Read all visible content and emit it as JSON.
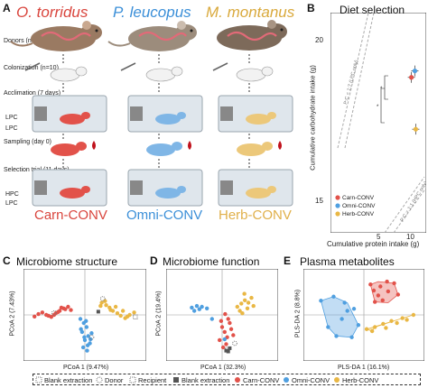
{
  "panels": {
    "a": "A",
    "b": "B",
    "c": "C",
    "d": "D",
    "e": "E"
  },
  "species": [
    {
      "name": "O. torridus",
      "color": "#d9453d"
    },
    {
      "name": "P. leucopus",
      "color": "#3b8fd8"
    },
    {
      "name": "M. montanus",
      "color": "#d9a93c"
    }
  ],
  "steps": {
    "donors": "Donors (n=10)",
    "colonization": "Colonization (n=10)",
    "acclimation": "Acclimation (7 days)",
    "sampling": "Sampling (day 0)",
    "selection": "Selection trial (11 days)",
    "lpc": "LPC",
    "hpc": "HPC"
  },
  "groups": [
    {
      "name": "Carn-CONV",
      "color": "#d9453d"
    },
    {
      "name": "Omni-CONV",
      "color": "#3b8fd8"
    },
    {
      "name": "Herb-CONV",
      "color": "#e0b04a"
    }
  ],
  "panel_titles": {
    "b": "Diet selection",
    "c": "Microbiome structure",
    "d": "Microbiome function",
    "e": "Plasma metabolites"
  },
  "colors": {
    "carn": "#e2524a",
    "omni": "#4f9fe0",
    "herb": "#e9b744",
    "grey": "#555555"
  },
  "chart_data": [
    {
      "panel": "B",
      "type": "scatter",
      "title": "Diet selection",
      "xlabel": "Cumulative protein intake (g)",
      "ylabel": "Cumulative carbohydrate intake (g)",
      "xlim": [
        0,
        11
      ],
      "ylim": [
        14.2,
        21
      ],
      "xticks": [
        5,
        10
      ],
      "yticks": [
        15,
        20
      ],
      "reference_lines": [
        "P:C = 1:7 (LPC only)",
        "P:C = 1:1 (HPC only)"
      ],
      "series": [
        {
          "name": "Carn-CONV",
          "color": "#e2524a",
          "x": [
            9.3
          ],
          "y": [
            19.0
          ]
        },
        {
          "name": "Omni-CONV",
          "color": "#4f9fe0",
          "x": [
            9.7
          ],
          "y": [
            19.2
          ]
        },
        {
          "name": "Herb-CONV",
          "color": "#e9b744",
          "x": [
            9.8
          ],
          "y": [
            17.4
          ]
        }
      ],
      "significance": [
        "*",
        "*"
      ],
      "legend": "bottom-left"
    },
    {
      "panel": "C",
      "type": "scatter",
      "title": "Microbiome structure",
      "xlabel": "PCoA 1 (9.47%)",
      "ylabel": "PCoA 2 (7.43%)",
      "xlim": [
        -1,
        1
      ],
      "ylim": [
        -1,
        1
      ],
      "series": [
        {
          "name": "Carn-CONV",
          "marker": "circle",
          "color": "#e2524a",
          "x": [
            -0.9,
            -0.83,
            -0.76,
            -0.69,
            -0.6,
            -0.52,
            -0.45,
            -0.38,
            -0.3,
            -0.25,
            -0.65,
            -0.48,
            -0.35,
            -0.55,
            -0.42
          ],
          "y": [
            -0.04,
            0.02,
            0.06,
            0.0,
            -0.05,
            0.04,
            0.1,
            0.16,
            0.2,
            0.12,
            -0.02,
            0.07,
            0.14,
            0.0,
            0.18
          ]
        },
        {
          "name": "Omni-CONV",
          "marker": "circle",
          "color": "#4f9fe0",
          "x": [
            -0.08,
            -0.02,
            0.03,
            -0.05,
            0.06,
            0.0,
            0.09,
            -0.03,
            0.04,
            0.1,
            -0.07,
            0.02,
            0.12,
            0.05,
            -0.01
          ],
          "y": [
            -0.1,
            -0.2,
            -0.3,
            -0.42,
            -0.52,
            -0.62,
            -0.7,
            -0.8,
            -0.88,
            -0.6,
            -0.35,
            -0.15,
            -0.45,
            -0.75,
            -0.55
          ]
        },
        {
          "name": "Herb-CONV",
          "marker": "circle",
          "color": "#e9b744",
          "x": [
            0.3,
            0.38,
            0.44,
            0.5,
            0.58,
            0.64,
            0.72,
            0.8,
            0.88,
            0.36,
            0.46,
            0.55,
            0.68,
            0.76,
            0.28
          ],
          "y": [
            0.3,
            0.24,
            0.18,
            0.1,
            0.04,
            -0.02,
            -0.08,
            0.0,
            0.06,
            0.34,
            0.12,
            0.2,
            0.1,
            -0.04,
            0.22
          ]
        },
        {
          "name": "Donor",
          "marker": "hollow-circle",
          "color": "#777777",
          "x": [
            -0.55,
            0.12,
            0.32
          ],
          "y": [
            0.05,
            -0.55,
            0.4
          ]
        },
        {
          "name": "Blank extraction",
          "marker": "square-dotted",
          "color": "#777777",
          "x": [
            0.9
          ],
          "y": [
            -0.05
          ]
        },
        {
          "name": "Recipient",
          "marker": "square",
          "color": "#555555",
          "x": [
            0.24
          ],
          "y": [
            0.08
          ]
        }
      ]
    },
    {
      "panel": "D",
      "type": "scatter",
      "title": "Microbiome function",
      "xlabel": "PCoA 1 (32.3%)",
      "ylabel": "PCoA 2 (19.4%)",
      "xlim": [
        -1,
        1
      ],
      "ylim": [
        -1,
        1
      ],
      "series": [
        {
          "name": "Carn-CONV",
          "marker": "circle",
          "color": "#e2524a",
          "x": [
            0.0,
            0.05,
            0.1,
            0.15,
            -0.05,
            0.08,
            0.12,
            0.02,
            0.18,
            0.06,
            0.22,
            -0.02
          ],
          "y": [
            -0.3,
            -0.42,
            -0.55,
            -0.2,
            -0.62,
            -0.72,
            -0.1,
            -0.8,
            -0.35,
            0.02,
            -0.5,
            -0.15
          ]
        },
        {
          "name": "Omni-CONV",
          "marker": "circle",
          "color": "#4f9fe0",
          "x": [
            -0.6,
            -0.55,
            -0.5,
            -0.45,
            -0.4,
            -0.3,
            -0.2,
            0.05
          ],
          "y": [
            0.18,
            0.1,
            0.22,
            0.14,
            0.2,
            0.16,
            -0.1,
            -0.6
          ]
        },
        {
          "name": "Herb-CONV",
          "marker": "circle",
          "color": "#e9b744",
          "x": [
            0.3,
            0.38,
            0.45,
            0.52,
            0.58,
            0.35,
            0.44,
            0.5,
            0.62,
            0.4
          ],
          "y": [
            0.2,
            0.28,
            0.36,
            0.3,
            0.42,
            0.1,
            0.52,
            0.16,
            0.22,
            0.04
          ]
        },
        {
          "name": "Donor",
          "marker": "hollow-circle",
          "color": "#777777",
          "x": [
            0.1,
            0.25
          ],
          "y": [
            -0.85,
            -0.7
          ]
        },
        {
          "name": "Recipient",
          "marker": "square",
          "color": "#555555",
          "x": [
            0.08,
            0.12,
            0.15
          ],
          "y": [
            -0.88,
            -0.9,
            -0.82
          ]
        }
      ]
    },
    {
      "panel": "E",
      "type": "scatter",
      "title": "Plasma metabolites",
      "xlabel": "PLS-DA 1 (16.1%)",
      "ylabel": "PLS-DA 2 (8.8%)",
      "xlim": [
        -1,
        1
      ],
      "ylim": [
        -1,
        1
      ],
      "series": [
        {
          "name": "Carn-CONV",
          "color": "#e2524a",
          "x": [
            0.12,
            0.18,
            0.26,
            0.34,
            0.42,
            0.55,
            0.62,
            0.2,
            0.44,
            0.3
          ],
          "y": [
            0.75,
            0.6,
            0.48,
            0.36,
            0.82,
            0.78,
            0.5,
            0.32,
            0.58,
            0.7
          ],
          "hull": [
            [
              0.12,
              0.75
            ],
            [
              0.26,
              0.82
            ],
            [
              0.55,
              0.78
            ],
            [
              0.62,
              0.5
            ],
            [
              0.44,
              0.3
            ],
            [
              0.2,
              0.32
            ]
          ]
        },
        {
          "name": "Omni-CONV",
          "color": "#4f9fe0",
          "x": [
            -0.78,
            -0.55,
            -0.3,
            -0.1,
            -0.22,
            -0.5,
            -0.65,
            -0.4,
            -0.18,
            -0.35
          ],
          "y": [
            0.35,
            0.45,
            0.1,
            -0.25,
            -0.55,
            -0.52,
            -0.3,
            -0.1,
            0.15,
            0.3
          ],
          "hull": [
            [
              -0.78,
              0.35
            ],
            [
              -0.55,
              0.45
            ],
            [
              -0.3,
              0.3
            ],
            [
              -0.1,
              -0.25
            ],
            [
              -0.22,
              -0.55
            ],
            [
              -0.5,
              -0.52
            ],
            [
              -0.65,
              -0.3
            ]
          ]
        },
        {
          "name": "Herb-CONV",
          "color": "#e9b744",
          "x": [
            0.05,
            0.2,
            0.35,
            0.5,
            0.7,
            0.9,
            0.15,
            0.4,
            0.6,
            0.78
          ],
          "y": [
            -0.35,
            -0.3,
            -0.22,
            -0.15,
            -0.08,
            0.0,
            -0.4,
            -0.32,
            -0.2,
            -0.12
          ],
          "hull": [
            [
              0.05,
              -0.35
            ],
            [
              0.9,
              0.0
            ],
            [
              0.7,
              -0.08
            ],
            [
              0.2,
              -0.3
            ],
            [
              0.15,
              -0.4
            ]
          ]
        }
      ]
    }
  ],
  "legend_bottom": [
    {
      "label": "Blank extraction",
      "marker": "square-dotted",
      "color": "#777777"
    },
    {
      "label": "Donor",
      "marker": "hollow-circle",
      "color": "#777777"
    },
    {
      "label": "Recipient",
      "marker": "square-hollow-dashed",
      "color": "#777777"
    },
    {
      "label": "Blank extraction",
      "marker": "square",
      "color": "#555555"
    },
    {
      "label": "Carn-CONV",
      "marker": "circle",
      "color": "#e2524a"
    },
    {
      "label": "Omni-CONV",
      "marker": "circle",
      "color": "#4f9fe0"
    },
    {
      "label": "Herb-CONV",
      "marker": "circle",
      "color": "#e9b744"
    }
  ]
}
